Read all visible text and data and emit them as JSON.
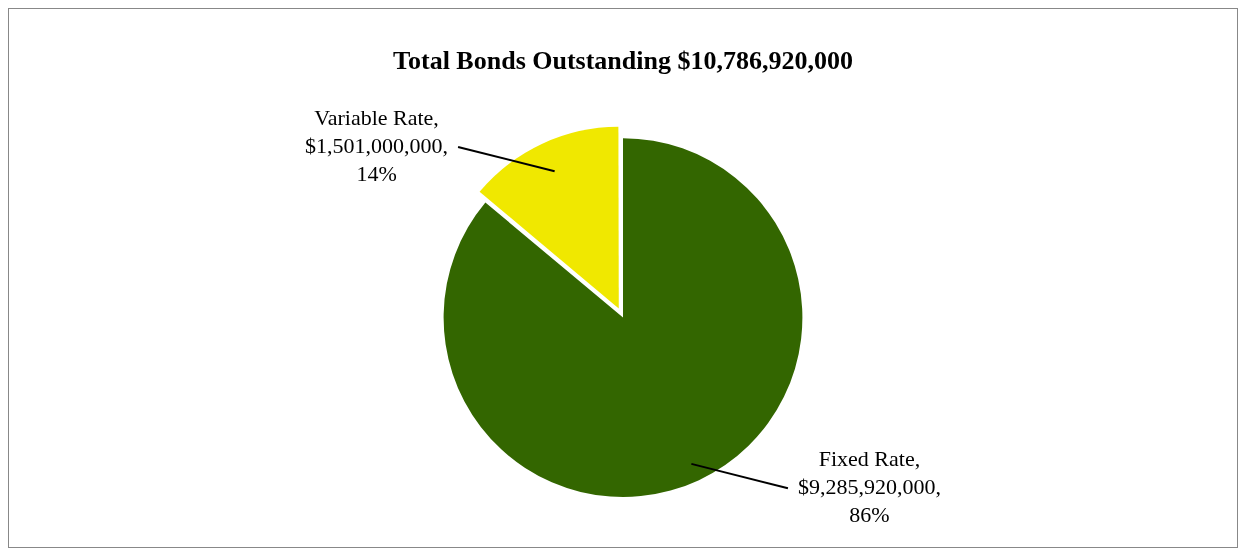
{
  "chart_data": {
    "type": "pie",
    "title": "Total Bonds Outstanding $10,786,920,000",
    "categories": [
      "Fixed Rate",
      "Variable Rate"
    ],
    "values": [
      9285920000,
      1501000000
    ],
    "colors": [
      "#336600",
      "#f0e800"
    ],
    "value_labels": [
      ",\n$9,285,920,000,\n86%",
      ",\n$1,501,000,000,\n14%"
    ],
    "legend": false
  }
}
